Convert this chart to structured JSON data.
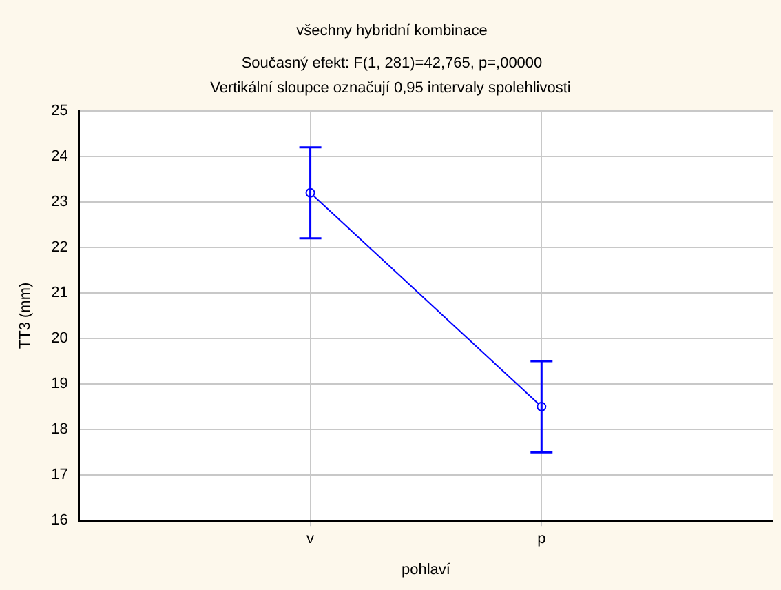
{
  "chart_data": {
    "type": "line",
    "title": "všechny hybridní kombinace",
    "subtitle": "Současný efekt: F(1, 281)=42,765, p=,00000",
    "annotations": [
      "Vertikální sloupce označují 0,95 intervaly spolehlivosti"
    ],
    "xlabel": "pohlaví",
    "ylabel": "TT3 (mm)",
    "categories": [
      "v",
      "p"
    ],
    "series": [
      {
        "color": "#0000ff",
        "values": [
          23.2,
          18.5
        ],
        "errors": [
          [
            22.2,
            24.2
          ],
          [
            17.5,
            19.5
          ]
        ]
      }
    ],
    "ylim": [
      16,
      25
    ],
    "yticks": [
      16,
      17,
      18,
      19,
      20,
      21,
      22,
      23,
      24,
      25
    ],
    "grid": true,
    "legend": false,
    "marker": "circle",
    "line_style": "solid"
  }
}
